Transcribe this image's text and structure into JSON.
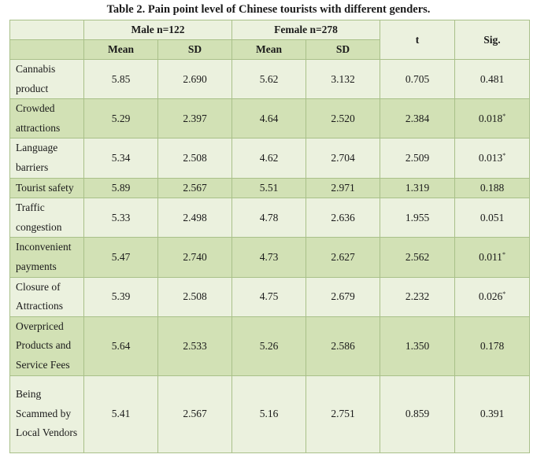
{
  "caption": "Table 2. Pain point level of Chinese tourists with different genders.",
  "headers": {
    "male": "Male n=122",
    "female": "Female n=278",
    "t": "t",
    "sig": "Sig.",
    "mean": "Mean",
    "sd": "SD"
  },
  "rows": [
    {
      "label": "Cannabis product",
      "male_mean": "5.85",
      "male_sd": "2.690",
      "female_mean": "5.62",
      "female_sd": "3.132",
      "t": "0.705",
      "sig": "0.481",
      "sig_mark": ""
    },
    {
      "label": "Crowded attractions",
      "male_mean": "5.29",
      "male_sd": "2.397",
      "female_mean": "4.64",
      "female_sd": "2.520",
      "t": "2.384",
      "sig": "0.018",
      "sig_mark": "*"
    },
    {
      "label": "Language barriers",
      "male_mean": "5.34",
      "male_sd": "2.508",
      "female_mean": "4.62",
      "female_sd": "2.704",
      "t": "2.509",
      "sig": "0.013",
      "sig_mark": "*"
    },
    {
      "label": "Tourist safety",
      "male_mean": "5.89",
      "male_sd": "2.567",
      "female_mean": "5.51",
      "female_sd": "2.971",
      "t": "1.319",
      "sig": "0.188",
      "sig_mark": ""
    },
    {
      "label": "Traffic congestion",
      "male_mean": "5.33",
      "male_sd": "2.498",
      "female_mean": "4.78",
      "female_sd": "2.636",
      "t": "1.955",
      "sig": "0.051",
      "sig_mark": ""
    },
    {
      "label": "Inconvenient payments",
      "male_mean": "5.47",
      "male_sd": "2.740",
      "female_mean": "4.73",
      "female_sd": "2.627",
      "t": "2.562",
      "sig": "0.011",
      "sig_mark": "*"
    },
    {
      "label": "Closure of Attractions",
      "male_mean": "5.39",
      "male_sd": "2.508",
      "female_mean": "4.75",
      "female_sd": "2.679",
      "t": "2.232",
      "sig": "0.026",
      "sig_mark": "*"
    },
    {
      "label": "Overpriced Products and Service Fees",
      "male_mean": "5.64",
      "male_sd": "2.533",
      "female_mean": "5.26",
      "female_sd": "2.586",
      "t": "1.350",
      "sig": "0.178",
      "sig_mark": ""
    },
    {
      "label": "Being Scammed by Local Vendors",
      "male_mean": "5.41",
      "male_sd": "2.567",
      "female_mean": "5.16",
      "female_sd": "2.751",
      "t": "0.859",
      "sig": "0.391",
      "sig_mark": ""
    }
  ],
  "colors": {
    "dark_green": "#d2e1b5",
    "light_green": "#ebf1de",
    "border": "#a9c089"
  }
}
